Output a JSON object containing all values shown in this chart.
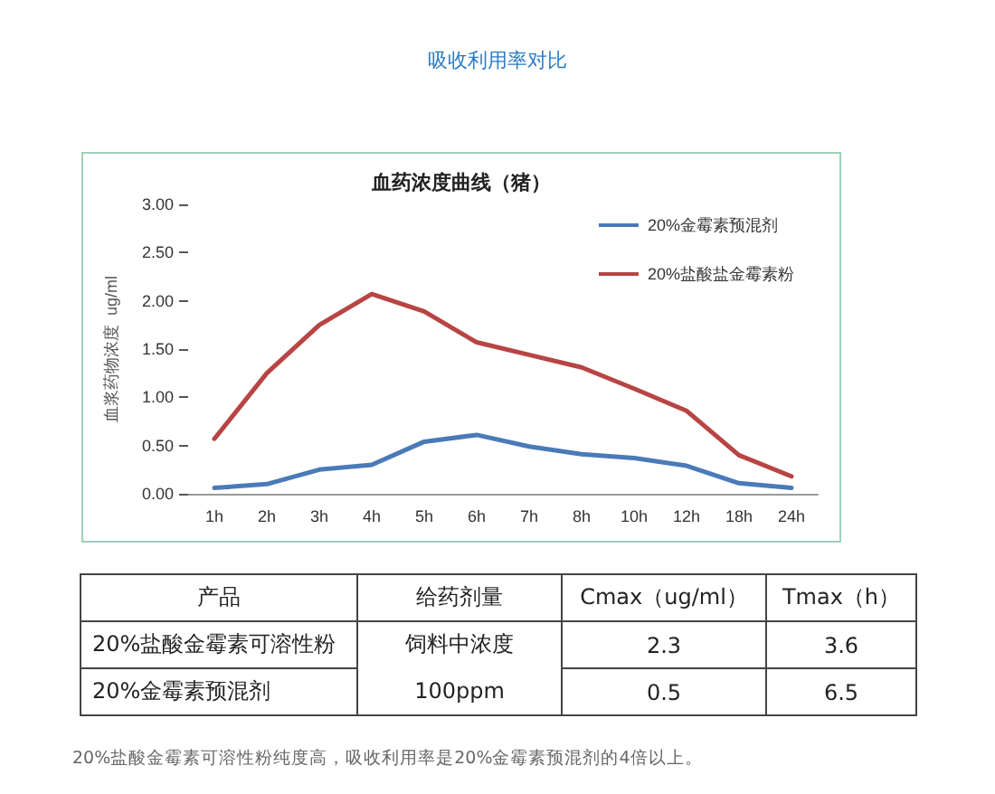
{
  "chart_data": [
    {
      "type": "line",
      "title": "吸收利用率对比",
      "subtitle": "血药浓度曲线（猪）",
      "ylabel": "血浆药物浓度  ug/ml",
      "categories": [
        "1h",
        "2h",
        "3h",
        "4h",
        "5h",
        "6h",
        "7h",
        "8h",
        "10h",
        "12h",
        "18h",
        "24h"
      ],
      "series": [
        {
          "name": "20%金霉素预混剂",
          "color": "#4a7ab8",
          "values": [
            0.06,
            0.1,
            0.25,
            0.3,
            0.54,
            0.61,
            0.49,
            0.41,
            0.37,
            0.29,
            0.11,
            0.06
          ]
        },
        {
          "name": "20%盐酸盐金霉素粉",
          "color": "#b84444",
          "values": [
            0.57,
            1.25,
            1.75,
            2.07,
            1.89,
            1.57,
            1.44,
            1.31,
            1.09,
            0.86,
            0.4,
            0.18
          ]
        }
      ],
      "ylim": [
        0,
        3
      ],
      "yticks": [
        {
          "value": 0,
          "label": "0.00"
        },
        {
          "value": 0.5,
          "label": "0.50"
        },
        {
          "value": 1,
          "label": "1.00"
        },
        {
          "value": 1.5,
          "label": "1.50"
        },
        {
          "value": 2,
          "label": "2.00"
        },
        {
          "value": 2.5,
          "label": "2.50"
        },
        {
          "value": 3,
          "label": "3.00"
        }
      ],
      "grid": false,
      "legend": "top right",
      "marker": "none",
      "line_style": "solid"
    },
    {
      "type": "other",
      "categories": [
        "产品",
        "给药剂量",
        "Cmax（ug/ml）",
        "Tmax（h）"
      ],
      "y_categories": [
        "20%盐酸金霉素可溶性粉",
        "20%金霉素预混剂"
      ],
      "cell_labels": [
        [
          "饲料中浓度",
          "2.3",
          "3.6"
        ],
        [
          "100ppm",
          "0.5",
          "6.5"
        ]
      ],
      "annotations": [
        "20%盐酸金霉素可溶性粉纯度高，吸收利用率是20%金霉素预混剂的4倍以上。"
      ]
    }
  ]
}
